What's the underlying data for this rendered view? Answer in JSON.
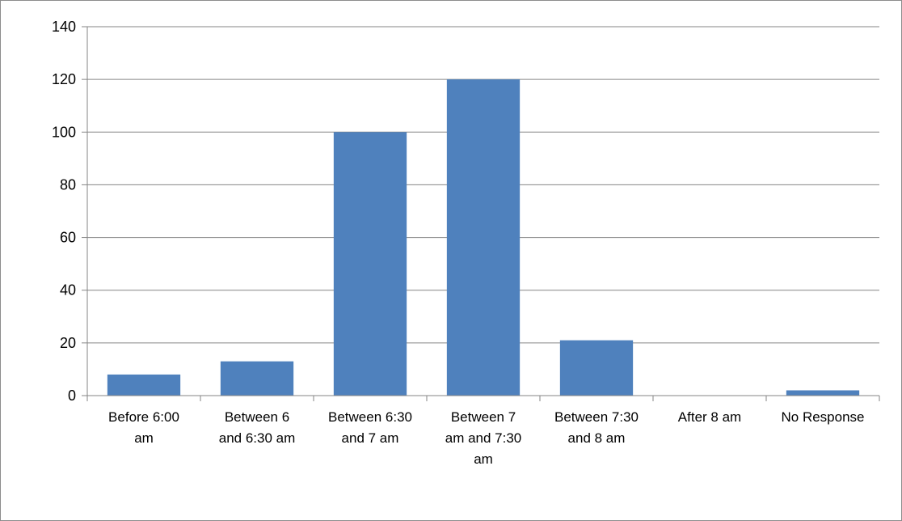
{
  "chart_data": {
    "type": "bar",
    "categories": [
      [
        "Before 6:00",
        "am"
      ],
      [
        "Between 6",
        "and 6:30 am"
      ],
      [
        "Between 6:30",
        "and 7 am"
      ],
      [
        "Between 7",
        "am and 7:30",
        "am"
      ],
      [
        "Between 7:30",
        "and 8 am"
      ],
      [
        "After 8 am"
      ],
      [
        "No Response"
      ]
    ],
    "values": [
      8,
      13,
      100,
      120,
      21,
      0,
      2
    ],
    "title": "",
    "xlabel": "",
    "ylabel": "",
    "ylim": [
      0,
      140
    ],
    "yticks": [
      "0",
      "20",
      "40",
      "60",
      "80",
      "100",
      "120",
      "140"
    ],
    "grid": true,
    "legend": "none",
    "colors": {
      "bar": "#4f81bd",
      "grid": "#868686",
      "axis": "#868686",
      "frame": "#8c8c8c"
    }
  }
}
